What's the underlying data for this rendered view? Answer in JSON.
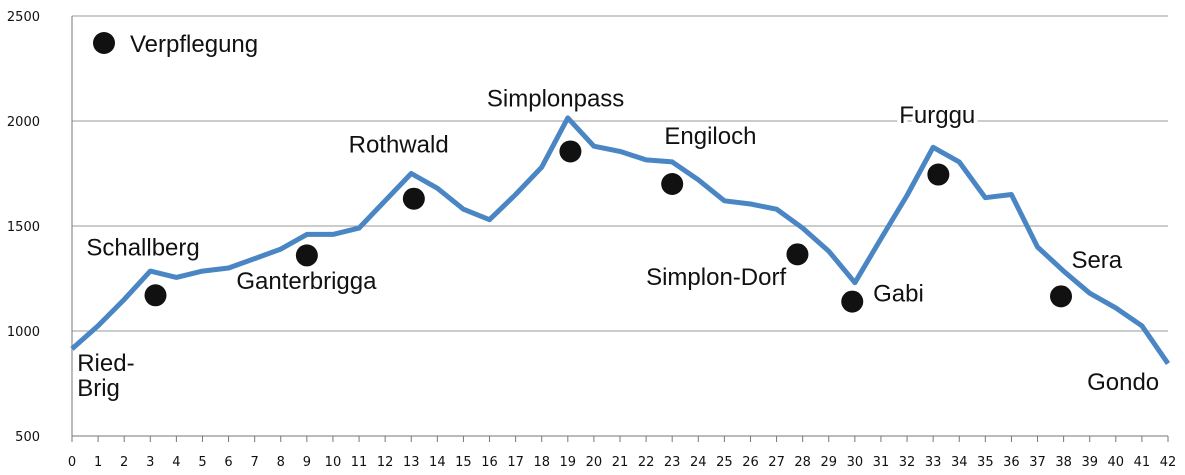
{
  "chart_data": {
    "type": "line",
    "title": "",
    "xlabel": "",
    "ylabel": "",
    "xlim": [
      0,
      42
    ],
    "ylim": [
      500,
      2500
    ],
    "yticks": [
      500,
      1000,
      1500,
      2000,
      2500
    ],
    "xticks": [
      0,
      1,
      2,
      3,
      4,
      5,
      6,
      7,
      8,
      9,
      10,
      11,
      12,
      13,
      14,
      15,
      16,
      17,
      18,
      19,
      20,
      21,
      22,
      23,
      24,
      25,
      26,
      27,
      28,
      29,
      30,
      31,
      32,
      33,
      34,
      35,
      36,
      37,
      38,
      39,
      40,
      41,
      42
    ],
    "grid": "horizontal",
    "line_color": "#4a86c3",
    "marker_color": "#111111",
    "series": [
      {
        "x": [
          0,
          1,
          2,
          3,
          4,
          5,
          6,
          7,
          8,
          9,
          10,
          11,
          12,
          13,
          14,
          15,
          16,
          17,
          18,
          19,
          20,
          21,
          22,
          23,
          24,
          25,
          26,
          27,
          28,
          29,
          30,
          31,
          32,
          33,
          34,
          35,
          36,
          37,
          38,
          39,
          40,
          41,
          42
        ],
        "y": [
          915,
          1025,
          1150,
          1285,
          1255,
          1285,
          1300,
          1345,
          1390,
          1460,
          1460,
          1490,
          1620,
          1750,
          1680,
          1580,
          1530,
          1650,
          1780,
          2015,
          1880,
          1855,
          1815,
          1805,
          1720,
          1620,
          1605,
          1580,
          1490,
          1380,
          1230,
          1440,
          1645,
          1875,
          1805,
          1635,
          1650,
          1400,
          1285,
          1180,
          1110,
          1025,
          845
        ]
      }
    ],
    "legend": {
      "label": "Verpflegung",
      "position": "top-left"
    },
    "verpflegung_points": [
      {
        "x": 3.2,
        "y": 1170
      },
      {
        "x": 9.0,
        "y": 1360
      },
      {
        "x": 13.1,
        "y": 1630
      },
      {
        "x": 19.1,
        "y": 1855
      },
      {
        "x": 23.0,
        "y": 1700
      },
      {
        "x": 27.8,
        "y": 1365
      },
      {
        "x": 29.9,
        "y": 1140
      },
      {
        "x": 33.2,
        "y": 1745
      },
      {
        "x": 37.9,
        "y": 1165
      }
    ],
    "annotations": [
      {
        "text": "Ried-",
        "x": 0.2,
        "y": 810
      },
      {
        "text": "Brig",
        "x": 0.2,
        "y": 690
      },
      {
        "text": "Schallberg",
        "x": 0.55,
        "y": 1360
      },
      {
        "text": "Ganterbrigga",
        "x": 6.3,
        "y": 1200
      },
      {
        "text": "Rothwald",
        "x": 10.6,
        "y": 1850
      },
      {
        "text": "Simplonpass",
        "x": 15.9,
        "y": 2070
      },
      {
        "text": "Engiloch",
        "x": 22.7,
        "y": 1890
      },
      {
        "text": "Simplon-Dorf",
        "x": 22.0,
        "y": 1220
      },
      {
        "text": "Gabi",
        "x": 30.7,
        "y": 1140
      },
      {
        "text": "Furggu",
        "x": 31.7,
        "y": 1990
      },
      {
        "text": "Sera",
        "x": 38.3,
        "y": 1300
      },
      {
        "text": "Gondo",
        "x": 38.9,
        "y": 720
      }
    ]
  }
}
